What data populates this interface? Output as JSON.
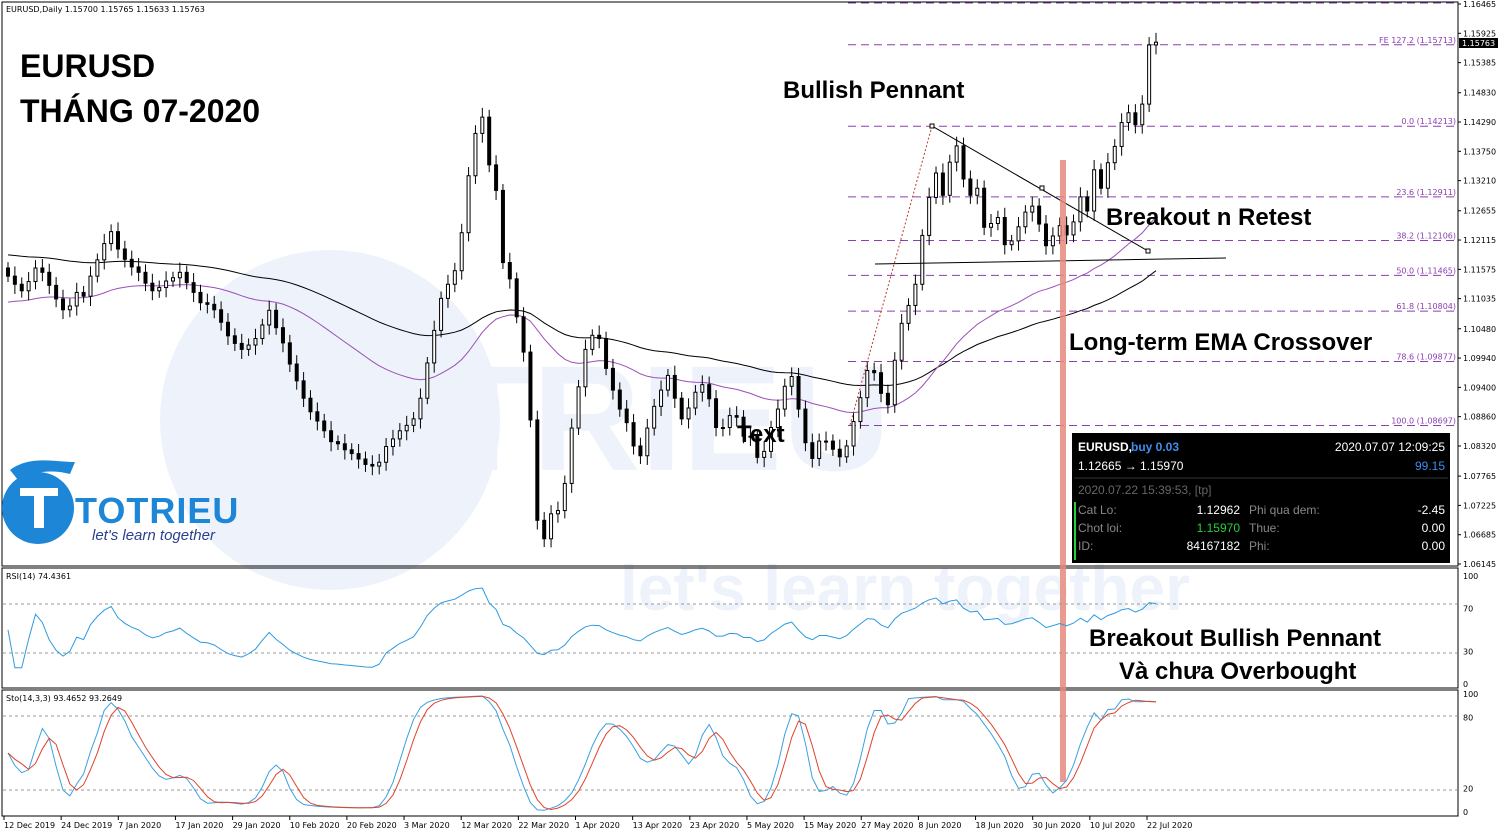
{
  "header": {
    "symbol_info": "EURUSD,Daily  1.15700 1.15765 1.15633 1.15763",
    "rsi_label": "RSI(14) 74.4361",
    "sto_label": "Sto(14,3,3) 93.4652 93.2649"
  },
  "title": {
    "line1": "EURUSD",
    "line2": "THÁNG 07-2020"
  },
  "annotations": {
    "bullish_pennant": "Bullish Pennant",
    "breakout_retest": "Breakout n Retest",
    "ema_crossover": "Long-term EMA Crossover",
    "breakout_pennant_l1": "Breakout Bullish Pennant",
    "breakout_pennant_l2": "Và chưa Overbought",
    "text_marker": "Text"
  },
  "logo": {
    "name": "TOTRIEU",
    "tagline": "let's learn together"
  },
  "watermark": {
    "text": "let's learn together"
  },
  "trade_panel": {
    "symbol": "EURUSD,",
    "order": "buy 0.03",
    "datetime": "2020.07.07 12:09:25",
    "prices": "1.12665 → 1.15970",
    "profit": "99.15",
    "close_time": "2020.07.22 15:39:53, [tp]",
    "cat_lo_label": "Cat Lo:",
    "cat_lo_value": "1.12962",
    "phi_qua_dem_label": "Phi qua dem:",
    "phi_qua_dem_value": "-2.45",
    "chot_loi_label": "Chot loi:",
    "chot_loi_value": "1.15970",
    "thue_label": "Thue:",
    "thue_value": "0.00",
    "id_label": "ID:",
    "id_value": "84167182",
    "phi_label": "Phi:",
    "phi_value": "0.00",
    "colors": {
      "bg": "#000000",
      "accent_blue": "#3d8ef0",
      "green": "#27d13a"
    }
  },
  "current_price_label": "1.15763",
  "chart_data": {
    "type": "candlestick",
    "main": {
      "ylim": [
        1.06145,
        1.16465
      ],
      "y_ticks": [
        "1.16465",
        "1.15925",
        "1.15385",
        "1.14830",
        "1.14290",
        "1.13750",
        "1.13210",
        "1.12655",
        "1.12115",
        "1.11575",
        "1.11035",
        "1.10480",
        "1.09940",
        "1.09400",
        "1.08860",
        "1.08320",
        "1.07765",
        "1.07225",
        "1.06685",
        "1.06145"
      ],
      "x_labels": [
        "12 Dec 2019",
        "24 Dec 2019",
        "7 Jan 2020",
        "17 Jan 2020",
        "29 Jan 2020",
        "10 Feb 2020",
        "20 Feb 2020",
        "3 Mar 2020",
        "12 Mar 2020",
        "22 Mar 2020",
        "1 Apr 2020",
        "13 Apr 2020",
        "23 Apr 2020",
        "5 May 2020",
        "15 May 2020",
        "27 May 2020",
        "8 Jun 2020",
        "18 Jun 2020",
        "30 Jun 2020",
        "10 Jul 2020",
        "22 Jul 2020"
      ],
      "fib_levels": [
        {
          "label": "FE 127.2 (1.15713)",
          "value": 1.15713
        },
        {
          "label": "0.0 (1.14213)",
          "value": 1.14213
        },
        {
          "label": "23.6 (1.12911)",
          "value": 1.12911
        },
        {
          "label": "38.2 (1.12106)",
          "value": 1.12106
        },
        {
          "label": "50.0 (1.11465)",
          "value": 1.11465
        },
        {
          "label": "61.8 (1.10804)",
          "value": 1.10804
        },
        {
          "label": "78.6 (1.09877)",
          "value": 1.09877
        },
        {
          "label": "100.0 (1.08697)",
          "value": 1.08697
        }
      ],
      "closes": [
        1.1145,
        1.113,
        1.1118,
        1.1135,
        1.116,
        1.1152,
        1.1128,
        1.1103,
        1.1083,
        1.109,
        1.1115,
        1.1108,
        1.1145,
        1.1175,
        1.1205,
        1.1227,
        1.1195,
        1.1176,
        1.1162,
        1.1152,
        1.1132,
        1.1118,
        1.1124,
        1.1136,
        1.1142,
        1.1152,
        1.1133,
        1.1115,
        1.1096,
        1.1093,
        1.1083,
        1.106,
        1.1035,
        1.1021,
        1.101,
        1.1018,
        1.103,
        1.1055,
        1.1082,
        1.105,
        1.1022,
        1.0983,
        1.0952,
        1.092,
        1.0895,
        1.0878,
        1.086,
        1.084,
        1.0836,
        1.0825,
        1.0818,
        1.0808,
        1.0798,
        1.0795,
        1.0802,
        1.0831,
        1.0845,
        1.086,
        1.087,
        1.0882,
        1.092,
        1.0985,
        1.1045,
        1.1104,
        1.113,
        1.1155,
        1.1225,
        1.133,
        1.1408,
        1.1438,
        1.135,
        1.1303,
        1.117,
        1.114,
        1.107,
        1.1005,
        1.088,
        1.0695,
        1.0661,
        1.0707,
        1.0713,
        1.0763,
        1.0865,
        1.0941,
        1.101,
        1.1036,
        1.103,
        1.0975,
        1.0935,
        1.09,
        1.0875,
        1.0832,
        1.0814,
        1.0865,
        1.0905,
        1.0935,
        1.0962,
        1.092,
        1.0882,
        1.0902,
        1.0931,
        1.0945,
        1.0919,
        1.0866,
        1.0866,
        1.0888,
        1.0885,
        1.085,
        1.085,
        1.0811,
        1.0822,
        1.0866,
        1.09,
        1.0942,
        1.096,
        1.09,
        1.0838,
        1.0809,
        1.0841,
        1.0841,
        1.0826,
        1.0812,
        1.0832,
        1.0877,
        1.0921,
        1.0971,
        1.0967,
        1.0929,
        1.0908,
        1.099,
        1.1058,
        1.1091,
        1.113,
        1.122,
        1.129,
        1.1335,
        1.1294,
        1.1355,
        1.1385,
        1.1324,
        1.1294,
        1.1307,
        1.1235,
        1.1242,
        1.1253,
        1.1203,
        1.121,
        1.1236,
        1.1263,
        1.1274,
        1.1241,
        1.1201,
        1.1219,
        1.1238,
        1.1221,
        1.1245,
        1.1291,
        1.1265,
        1.1341,
        1.1307,
        1.1354,
        1.1384,
        1.1428,
        1.1446,
        1.1424,
        1.1462,
        1.1571,
        1.1576
      ],
      "ema_slow_start": 1.1185,
      "ema_slow_end": 1.109,
      "ema_fast_start": 1.1095,
      "ema_fast_end": 1.1145
    },
    "rsi": {
      "ylim": [
        0,
        100
      ],
      "y_ticks": [
        100,
        70,
        30,
        0
      ],
      "last": 74.4361
    },
    "stochastic": {
      "ylim": [
        0,
        100
      ],
      "y_ticks": [
        100,
        80,
        20,
        0
      ],
      "k_last": 93.4652,
      "d_last": 93.2649
    }
  },
  "colors": {
    "fib": "#8a3fb0",
    "rsi": "#2c9be0",
    "sto_k": "#39a0df",
    "sto_d": "#e0432c",
    "ema_fast": "#9b4fb8",
    "ema_slow": "#000000",
    "vertical_marker": "#e58a7c",
    "brand_blue": "#1e86d6"
  }
}
